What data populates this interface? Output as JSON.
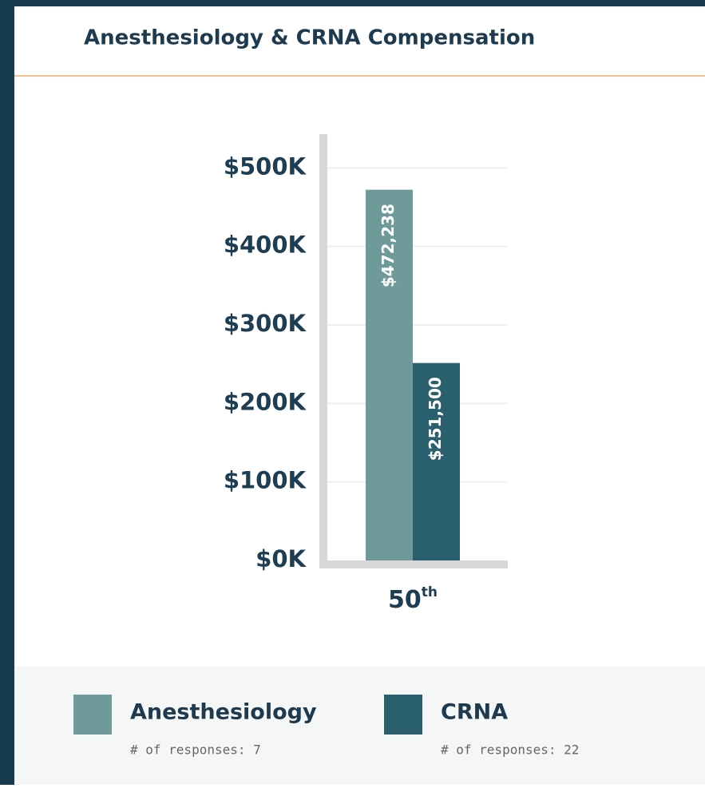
{
  "chart_data": {
    "type": "bar",
    "title": "Anesthesiology & CRNA Compensation",
    "categories": [
      "50th"
    ],
    "series": [
      {
        "name": "Anesthesiology",
        "color": "#6e9a9a",
        "values": [
          472238
        ],
        "value_labels": [
          "$472,238"
        ],
        "note": "# of responses: 7"
      },
      {
        "name": "CRNA",
        "color": "#2a5f6e",
        "values": [
          251500
        ],
        "value_labels": [
          "$251,500"
        ],
        "note": "# of responses: 22"
      }
    ],
    "ylim": [
      0,
      540000
    ],
    "yticks": [
      {
        "value": 0,
        "label": "$0K"
      },
      {
        "value": 100000,
        "label": "$100K"
      },
      {
        "value": 200000,
        "label": "$200K"
      },
      {
        "value": 300000,
        "label": "$300K"
      },
      {
        "value": 400000,
        "label": "$400K"
      },
      {
        "value": 500000,
        "label": "$500K"
      }
    ],
    "grid": true
  }
}
